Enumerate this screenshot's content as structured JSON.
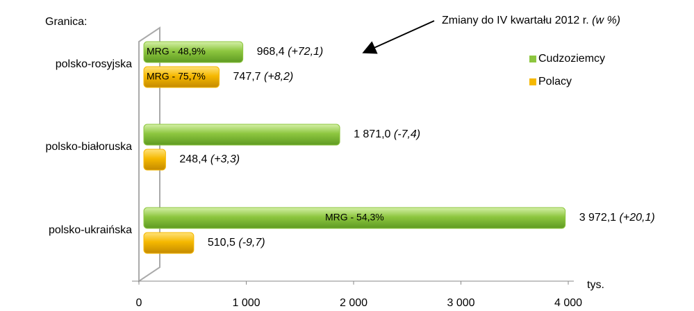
{
  "chart_data": {
    "type": "bar",
    "orientation": "horizontal",
    "y_label": "Granica:",
    "x_label": "tys.",
    "annotation": "Zmiany do IV kwartału  2012 r.",
    "annotation_unit": "(w %)",
    "categories": [
      "polsko-rosyjska",
      "polsko-białoruska",
      "polsko-ukraińska"
    ],
    "series": [
      {
        "name": "Cudzoziemcy",
        "color": "#8dc63f",
        "values": [
          968.4,
          1871.0,
          3972.1
        ],
        "value_labels": [
          "968,4",
          "1 871,0",
          "3 972,1"
        ],
        "change_labels": [
          "(+72,1)",
          "(-7,4)",
          "(+20,1)"
        ],
        "inner_labels": [
          "MRG - 48,9%",
          null,
          "MRG - 54,3%"
        ]
      },
      {
        "name": "Polacy",
        "color": "#f5b800",
        "values": [
          747.7,
          248.4,
          510.5
        ],
        "value_labels": [
          "747,7",
          "248,4",
          "510,5"
        ],
        "change_labels": [
          "(+8,2)",
          "(+3,3)",
          "(-9,7)"
        ],
        "inner_labels": [
          "MRG - 75,7%",
          null,
          null
        ]
      }
    ],
    "xlim": [
      0,
      4000
    ],
    "xticks": [
      0,
      {
        "value": 1000,
        "label": "1 000"
      },
      {
        "value": 2000,
        "label": "2 000"
      },
      {
        "value": 3000,
        "label": "3 000"
      },
      {
        "value": 4000,
        "label": "4 000"
      }
    ],
    "legend": "right"
  }
}
